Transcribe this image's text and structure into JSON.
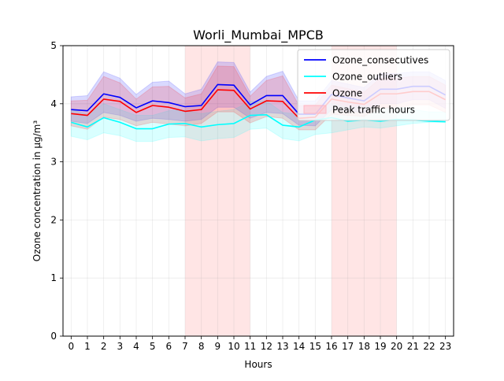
{
  "chart_data": {
    "type": "line",
    "title": "Worli_Mumbai_MPCB",
    "xlabel": "Hours",
    "ylabel": "Ozone concentration in μg/m³",
    "xlim": [
      -0.5,
      23.5
    ],
    "ylim": [
      0,
      5
    ],
    "x": [
      0,
      1,
      2,
      3,
      4,
      5,
      6,
      7,
      8,
      9,
      10,
      11,
      12,
      13,
      14,
      15,
      16,
      17,
      18,
      19,
      20,
      21,
      22,
      23
    ],
    "x_ticks": [
      "0",
      "1",
      "2",
      "3",
      "4",
      "5",
      "6",
      "7",
      "8",
      "9",
      "10",
      "11",
      "12",
      "13",
      "14",
      "15",
      "16",
      "17",
      "18",
      "19",
      "20",
      "21",
      "22",
      "23"
    ],
    "y_ticks": [
      "0",
      "1",
      "2",
      "3",
      "4",
      "5"
    ],
    "grid": true,
    "legend_position": "upper right",
    "peak_spans": [
      [
        7,
        11
      ],
      [
        16,
        20
      ]
    ],
    "series": [
      {
        "name": "Ozone_consecutives",
        "color": "#0000ff",
        "values": [
          3.9,
          3.88,
          4.17,
          4.11,
          3.93,
          4.05,
          4.02,
          3.95,
          3.97,
          4.33,
          4.32,
          3.98,
          4.14,
          4.14,
          3.82,
          3.82,
          4.16,
          4.1,
          4.05,
          4.25,
          4.25,
          4.3,
          4.3,
          4.15
        ],
        "lower": [
          3.7,
          3.66,
          3.85,
          3.8,
          3.7,
          3.75,
          3.73,
          3.7,
          3.73,
          3.94,
          3.94,
          3.75,
          3.85,
          3.83,
          3.63,
          3.62,
          3.9,
          3.88,
          3.85,
          4.0,
          4.0,
          4.07,
          4.07,
          3.92
        ],
        "upper": [
          4.12,
          4.14,
          4.55,
          4.44,
          4.16,
          4.37,
          4.39,
          4.17,
          4.25,
          4.72,
          4.71,
          4.2,
          4.47,
          4.56,
          4.05,
          4.05,
          4.4,
          4.34,
          4.28,
          4.52,
          4.52,
          4.55,
          4.55,
          4.4
        ]
      },
      {
        "name": "Ozone_outliers",
        "color": "#00ffff",
        "values": [
          3.68,
          3.6,
          3.76,
          3.68,
          3.57,
          3.57,
          3.65,
          3.66,
          3.6,
          3.64,
          3.66,
          3.8,
          3.81,
          3.63,
          3.6,
          3.72,
          3.76,
          3.7,
          3.72,
          3.7,
          3.73,
          3.72,
          3.7,
          3.69
        ],
        "lower": [
          3.44,
          3.38,
          3.5,
          3.45,
          3.35,
          3.35,
          3.42,
          3.43,
          3.36,
          3.4,
          3.42,
          3.56,
          3.58,
          3.4,
          3.36,
          3.47,
          3.5,
          3.55,
          3.6,
          3.58,
          3.62,
          3.66,
          3.68,
          3.68
        ],
        "upper": [
          3.9,
          3.82,
          4.0,
          3.9,
          3.8,
          3.8,
          3.88,
          3.89,
          3.83,
          3.87,
          3.9,
          4.04,
          4.05,
          3.85,
          3.82,
          3.96,
          4.0,
          3.94,
          3.95,
          3.92,
          3.95,
          3.9,
          3.86,
          3.86
        ]
      },
      {
        "name": "Ozone",
        "color": "#ff0000",
        "values": [
          3.83,
          3.8,
          4.08,
          4.04,
          3.85,
          3.97,
          3.94,
          3.87,
          3.9,
          4.24,
          4.23,
          3.91,
          4.05,
          4.04,
          3.75,
          3.77,
          4.08,
          4.03,
          3.99,
          4.17,
          4.17,
          4.21,
          4.21,
          4.07
        ],
        "lower": [
          3.62,
          3.56,
          3.77,
          3.73,
          3.62,
          3.68,
          3.65,
          3.62,
          3.66,
          3.86,
          3.86,
          3.67,
          3.78,
          3.75,
          3.55,
          3.55,
          3.82,
          3.8,
          3.78,
          3.93,
          3.93,
          3.98,
          3.98,
          3.85
        ],
        "upper": [
          4.05,
          4.06,
          4.47,
          4.36,
          4.08,
          4.29,
          4.3,
          4.1,
          4.17,
          4.65,
          4.64,
          4.13,
          4.4,
          4.48,
          3.97,
          3.98,
          4.32,
          4.26,
          4.2,
          4.44,
          4.44,
          4.47,
          4.47,
          4.32
        ]
      }
    ],
    "legend": [
      {
        "label": "Ozone_consecutives",
        "kind": "line",
        "color": "#0000ff"
      },
      {
        "label": "Ozone_outliers",
        "kind": "line",
        "color": "#00ffff"
      },
      {
        "label": "Ozone",
        "kind": "line",
        "color": "#ff0000"
      },
      {
        "label": "Peak traffic hours",
        "kind": "patch",
        "color": "#ffb6c1"
      }
    ]
  }
}
